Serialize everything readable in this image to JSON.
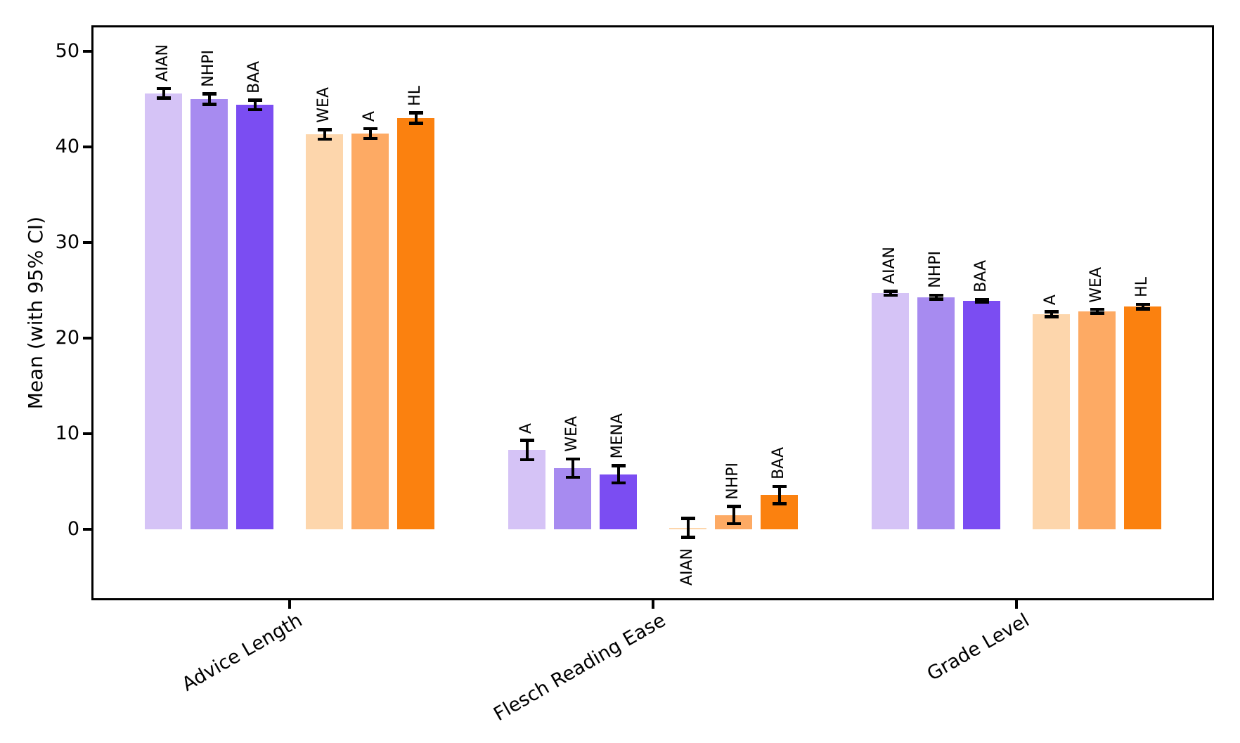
{
  "chart_data": {
    "type": "bar",
    "title": "",
    "xlabel": "",
    "ylabel": "Mean (with 95% CI)",
    "ylim": [
      -7.2,
      52.5
    ],
    "yticks": [
      0,
      10,
      20,
      30,
      40,
      50
    ],
    "grid": false,
    "legend": false,
    "bar_label_rotation": 90,
    "xtick_rotation": 30,
    "error_bars": "95% CI",
    "error_color": "#000000",
    "palette": {
      "purple_shades": [
        "#d5c3f6",
        "#a78bf0",
        "#7b4df2"
      ],
      "orange_shades": [
        "#fdd6ac",
        "#fdaa64",
        "#fb810f"
      ]
    },
    "categories": [
      "Advice Length",
      "Flesch Reading Ease",
      "Grade Level"
    ],
    "groups": [
      {
        "category": "Advice Length",
        "bars": [
          {
            "label": "AIAN",
            "value": 45.6,
            "ci": 0.5,
            "color": "#d5c3f6",
            "label_position": "above"
          },
          {
            "label": "NHPI",
            "value": 45.0,
            "ci": 0.55,
            "color": "#a78bf0",
            "label_position": "above"
          },
          {
            "label": "BAA",
            "value": 44.4,
            "ci": 0.5,
            "color": "#7b4df2",
            "label_position": "above"
          },
          {
            "label": "WEA",
            "value": 41.3,
            "ci": 0.5,
            "color": "#fdd6ac",
            "label_position": "above"
          },
          {
            "label": "A",
            "value": 41.4,
            "ci": 0.5,
            "color": "#fdaa64",
            "label_position": "above"
          },
          {
            "label": "HL",
            "value": 43.0,
            "ci": 0.55,
            "color": "#fb810f",
            "label_position": "above"
          }
        ]
      },
      {
        "category": "Flesch Reading Ease",
        "bars": [
          {
            "label": "A",
            "value": 8.3,
            "ci": 1.0,
            "color": "#d5c3f6",
            "label_position": "above"
          },
          {
            "label": "WEA",
            "value": 6.4,
            "ci": 0.95,
            "color": "#a78bf0",
            "label_position": "above"
          },
          {
            "label": "MENA",
            "value": 5.75,
            "ci": 0.9,
            "color": "#7b4df2",
            "label_position": "above"
          },
          {
            "label": "AIAN",
            "value": 0.15,
            "ci": 1.0,
            "color": "#fdd6ac",
            "label_position": "below"
          },
          {
            "label": "NHPI",
            "value": 1.5,
            "ci": 0.9,
            "color": "#fdaa64",
            "label_position": "above"
          },
          {
            "label": "BAA",
            "value": 3.6,
            "ci": 0.9,
            "color": "#fb810f",
            "label_position": "above"
          }
        ]
      },
      {
        "category": "Grade Level",
        "bars": [
          {
            "label": "AIAN",
            "value": 24.7,
            "ci": 0.2,
            "color": "#d5c3f6",
            "label_position": "above"
          },
          {
            "label": "NHPI",
            "value": 24.3,
            "ci": 0.2,
            "color": "#a78bf0",
            "label_position": "above"
          },
          {
            "label": "BAA",
            "value": 23.9,
            "ci": 0.15,
            "color": "#7b4df2",
            "label_position": "above"
          },
          {
            "label": "A",
            "value": 22.5,
            "ci": 0.25,
            "color": "#fdd6ac",
            "label_position": "above"
          },
          {
            "label": "WEA",
            "value": 22.8,
            "ci": 0.2,
            "color": "#fdaa64",
            "label_position": "above"
          },
          {
            "label": "HL",
            "value": 23.3,
            "ci": 0.25,
            "color": "#fb810f",
            "label_position": "above"
          }
        ]
      }
    ]
  }
}
